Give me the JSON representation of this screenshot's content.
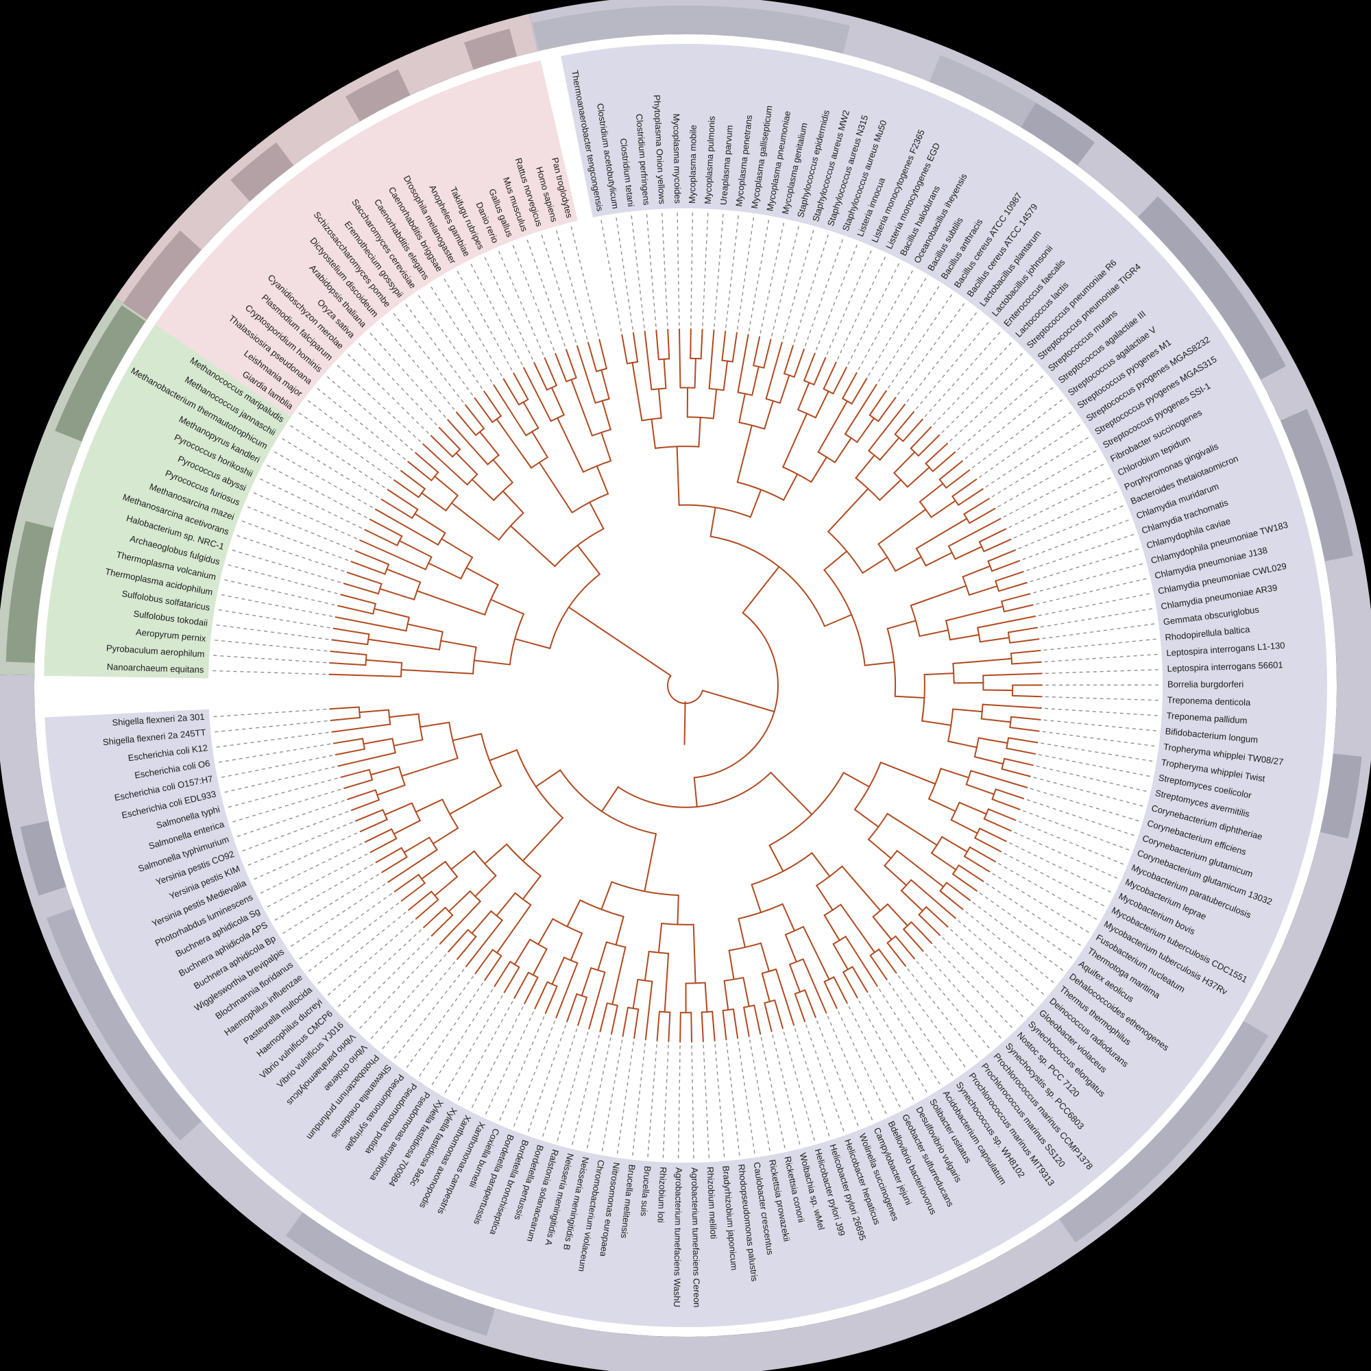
{
  "figure": {
    "type": "circular-phylogenetic-tree",
    "background": "#000000",
    "inner_background": "#ffffff",
    "tree": {
      "branch_color": "#b0491e",
      "leader_line_color": "#8f8f8f",
      "label_color": "#1b1b1b"
    },
    "ring": {
      "base_segments": [
        {
          "from": 346.9,
          "to": 630.9,
          "color": "#c8c7d3"
        },
        {
          "from": 270.9,
          "to": 304.2,
          "color": "#c4cec0"
        },
        {
          "from": 304.2,
          "to": 346.9,
          "color": "#dbc9cc"
        }
      ],
      "dark_segments": [
        {
          "from": 347.0,
          "to": 391.0,
          "color": "#b8b7c4"
        },
        {
          "from": 374.0,
          "to": 382.0,
          "color": "#c8c7d3"
        },
        {
          "from": 31,
          "to": 37,
          "color": "#a6a5b3"
        },
        {
          "from": 44,
          "to": 62,
          "color": "#a6a5b3"
        },
        {
          "from": 66,
          "to": 79,
          "color": "#a6a5b3"
        },
        {
          "from": 96,
          "to": 103,
          "color": "#a6a5b3"
        },
        {
          "from": 121,
          "to": 145,
          "color": "#b1b0be"
        },
        {
          "from": 197,
          "to": 216,
          "color": "#b1b0be"
        },
        {
          "from": 228,
          "to": 250,
          "color": "#b1b0be"
        },
        {
          "from": 252,
          "to": 258,
          "color": "#a6a5b3"
        },
        {
          "from": 272,
          "to": 284,
          "color": "#8e9d88"
        },
        {
          "from": 292,
          "to": 304,
          "color": "#8e9d88"
        },
        {
          "from": 304.2,
          "to": 312,
          "color": "#b3a1a6"
        },
        {
          "from": 318,
          "to": 323,
          "color": "#b3a1a6"
        },
        {
          "from": 330,
          "to": 335,
          "color": "#b3a1a6"
        },
        {
          "from": 341,
          "to": 345,
          "color": "#b3a1a6"
        }
      ]
    },
    "domains": [
      {
        "id": "bacteria",
        "sector_color": "#dbdae8",
        "species": [
          "Thermoanaerobacter tengcongensis",
          "Clostridium acetobutylicum",
          "Clostridium tetani",
          "Clostridium perfringens",
          "Phytoplasma Onion yellows",
          "Mycoplasma mycoides",
          "Mycoplasma mobile",
          "Mycoplasma pulmonis",
          "Ureaplasma parvum",
          "Mycoplasma penetrans",
          "Mycoplasma gallisepticum",
          "Mycoplasma pneumoniae",
          "Mycoplasma genitalium",
          "Staphylococcus epidermidis",
          "Staphylococcus aureus MW2",
          "Staphylococcus aureus N315",
          "Staphylococcus aureus Mu50",
          "Listeria innocua",
          "Listeria monocytogenes F2365",
          "Listeria monocytogenes EGD",
          "Bacillus halodurans",
          "Oceanobacillus iheyensis",
          "Bacillus subtilis",
          "Bacillus anthracis",
          "Bacillus cereus ATCC 10987",
          "Bacillus cereus ATCC 14579",
          "Lactobacillus plantarum",
          "Lactobacillus johnsonii",
          "Enterococcus faecalis",
          "Lactococcus lactis",
          "Streptococcus pneumoniae R6",
          "Streptococcus pneumoniae TIGR4",
          "Streptococcus mutans",
          "Streptococcus agalactiae III",
          "Streptococcus agalactiae V",
          "Streptococcus pyogenes M1",
          "Streptococcus pyogenes MGAS8232",
          "Streptococcus pyogenes MGAS315",
          "Streptococcus pyogenes SSI-1",
          "Fibrobacter succinogenes",
          "Chlorobium tepidum",
          "Porphyromonas gingivalis",
          "Bacteroides thetaiotaomicron",
          "Chlamydia muridarum",
          "Chlamydia trachomatis",
          "Chlamydophila caviae",
          "Chlamydophila pneumoniae TW183",
          "Chlamydia pneumoniae J138",
          "Chlamydia pneumoniae CWL029",
          "Chlamydia pneumoniae AR39",
          "Gemmata obscuriglobus",
          "Rhodopirellula baltica",
          "Leptospira interrogans L1-130",
          "Leptospira interrogans 56601",
          "Borrelia burgdorferi",
          "Treponema denticola",
          "Treponema pallidum",
          "Bifidobacterium longum",
          "Tropheryma whipplei TW08/27",
          "Tropheryma whipplei Twist",
          "Streptomyces coelicolor",
          "Streptomyces avermitilis",
          "Corynebacterium diphtheriae",
          "Corynebacterium efficiens",
          "Corynebacterium glutamicum",
          "Corynebacterium glutamicum 13032",
          "Mycobacterium paratuberculosis",
          "Mycobacterium leprae",
          "Mycobacterium bovis",
          "Mycobacterium tuberculosis CDC1551",
          "Mycobacterium tuberculosis H37Rv",
          "Fusobacterium nucleatum",
          "Thermotoga maritima",
          "Aquifex aeolicus",
          "Dehalococcoides ethenogenes",
          "Thermus thermophilus",
          "Deinococcus radiodurans",
          "Gloeobacter violaceus",
          "Synechococcus elongatus",
          "Nostoc sp. PCC 7120",
          "Synechocystis sp. PCC6803",
          "Prochlorococcus marinus CCMP1378",
          "Prochlorococcus marinus SS120",
          "Prochlorococcus marinus MIT9313",
          "Synechococcus sp. WH8102",
          "Acidobacterium capsulatum",
          "Solibacter usitatus",
          "Desulfovibrio vulgaris",
          "Geobacter sulfurreducans",
          "Bdellovibrio bacteriovorus",
          "Campylobacter jejuni",
          "Wolinella succinogenes",
          "Helicobacter hepaticus",
          "Helicobacter pylori 26695",
          "Helicobacter pylori J99",
          "Wolbachia sp. wMel",
          "Rickettsia conorii",
          "Rickettsia prowazekii",
          "Caulobacter crescentus",
          "Rhodopseudomonas palustris",
          "Bradyrhizobium japonicum",
          "Rhizobium meliloti",
          "Agrobacterium tumefaciens Cereon",
          "Agrobacterium tumefaciens WashU",
          "Rhizobium loti",
          "Brucella suis",
          "Brucella melitensis",
          "Nitrosomonas europaea",
          "Chromobacterium violaceum",
          "Neisseria meningitidis B",
          "Neisseria meningitidis A",
          "Ralstonia solanacearum",
          "Bordetella pertussis",
          "Bordetella bronchiseptica",
          "Bordetella parapertussis",
          "Coxiella burnetii",
          "Xanthomonas campestris",
          "Xanthomonas axonopodis",
          "Xylella fastidiosa 9a5c",
          "Xylella fastidiosa 700984",
          "Pseudomonas aeruginosa",
          "Pseudomonas putida",
          "Pseudomonas syringae",
          "Shewanella oneidensis",
          "Photobacterium profundum",
          "Vibrio cholerae",
          "Vibrio parahaemolyticus",
          "Vibrio vulnificus YJ016",
          "Vibrio vulnificus CMCP6",
          "Haemophilus ducreyi",
          "Pasteurella multocida",
          "Haemophilus influenzae",
          "Blochmannia floridanus",
          "Wigglesworthia brevipalpis",
          "Buchnera aphidicola Bp",
          "Buchnera aphidicola APS",
          "Buchnera aphidicola Sg",
          "Photorhabdus luminescens",
          "Yersinia pestis Medievalia",
          "Yersinia pestis KIM",
          "Yersinia pestis CO92",
          "Salmonella typhimurium",
          "Salmonella enterica",
          "Salmonella typhi",
          "Escherichia coli EDL933",
          "Escherichia coli O157:H7",
          "Escherichia coli O6",
          "Escherichia coli K12",
          "Shigella flexneri 2a 245TT",
          "Shigella flexneri 2a 301"
        ]
      },
      {
        "id": "archaea",
        "sector_color": "#d7e8d1",
        "species": [
          "Nanoarchaeum equitans",
          "Pyrobaculum aerophilum",
          "Aeropyrum pernix",
          "Sulfolobus tokodaii",
          "Sulfolobus solfataricus",
          "Thermoplasma acidophilum",
          "Thermoplasma volcanium",
          "Archaeoglobus fulgidus",
          "Halobacterium sp. NRC-1",
          "Methanosarcina acetivorans",
          "Methanosarcina mazei",
          "Pyrococcus furiosus",
          "Pyrococcus abyssi",
          "Pyrococcus horikoshii",
          "Methanopyrus kandleri",
          "Methanobacterium thermautotrophicum",
          "Methanococcus jannaschii",
          "Methanococcus maripaludis"
        ]
      },
      {
        "id": "eukaryota",
        "sector_color": "#f3dee1",
        "species": [
          "Giardia lamblia",
          "Leishmania major",
          "Thalassiosira pseudonana",
          "Cryptosporidium hominis",
          "Plasmodium falciparum",
          "Cyanidioschyzon merolae",
          "Oryza sativa",
          "Arabidopsis thaliana",
          "Dictyostelium discoideum",
          "Schizosaccharomyces pombe",
          "Eremothecium gossypii",
          "Saccharomyces cerevisiae",
          "Caenorhabditis elegans",
          "Caenorhabditis briggsae",
          "Drosophila melanogaster",
          "Anopheles gambiae",
          "Takifugu rubripes",
          "Danio rerio",
          "Gallus gallus",
          "Mus musculus",
          "Rattus norvegicus",
          "Homo sapiens",
          "Pan troglodytes"
        ]
      }
    ]
  }
}
